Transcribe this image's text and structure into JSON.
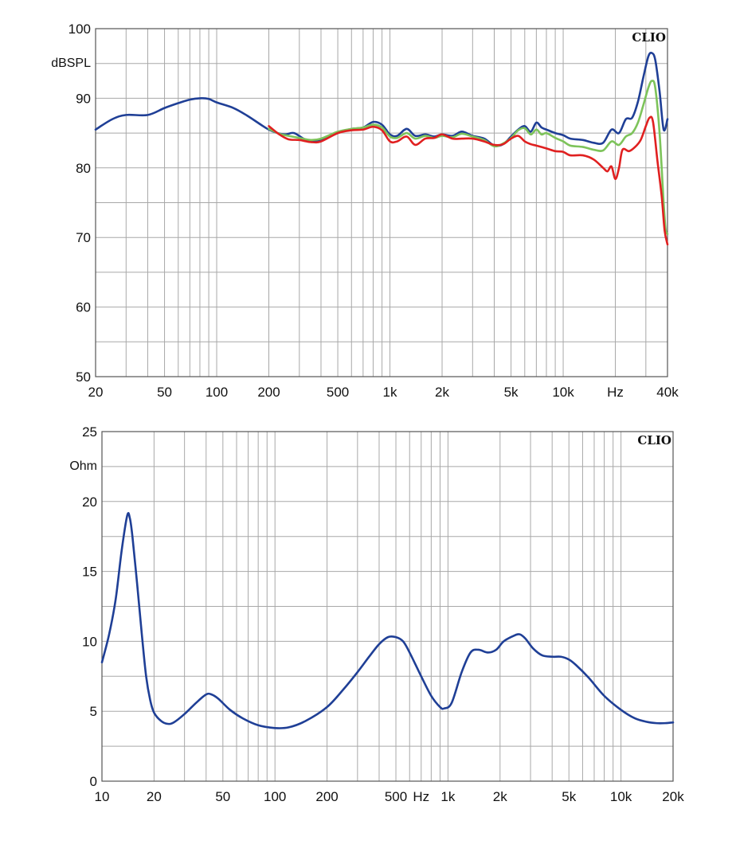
{
  "chart_data": [
    {
      "type": "line",
      "brand": "CLIO",
      "ylabel": "dBSPL",
      "xlabel": "Hz",
      "x_scale": "log",
      "xlim": [
        20,
        40000
      ],
      "ylim": [
        50,
        100
      ],
      "grid": true,
      "y_ticks": [
        {
          "value": 50,
          "label": "50"
        },
        {
          "value": 60,
          "label": "60"
        },
        {
          "value": 70,
          "label": "70"
        },
        {
          "value": 80,
          "label": "80"
        },
        {
          "value": 90,
          "label": "90"
        },
        {
          "value": 100,
          "label": "100"
        }
      ],
      "x_ticks": [
        {
          "value": 20,
          "label": "20"
        },
        {
          "value": 50,
          "label": "50"
        },
        {
          "value": 100,
          "label": "100"
        },
        {
          "value": 200,
          "label": "200"
        },
        {
          "value": 500,
          "label": "500"
        },
        {
          "value": 1000,
          "label": "1k"
        },
        {
          "value": 2000,
          "label": "2k"
        },
        {
          "value": 5000,
          "label": "5k"
        },
        {
          "value": 10000,
          "label": "10k"
        },
        {
          "value": 20000,
          "label": "Hz"
        },
        {
          "value": 40000,
          "label": "40k"
        }
      ],
      "series": [
        {
          "color": "#1f3f96",
          "points": [
            [
              20,
              85.5
            ],
            [
              25,
              87
            ],
            [
              30,
              87.6
            ],
            [
              40,
              87.6
            ],
            [
              50,
              88.6
            ],
            [
              60,
              89.3
            ],
            [
              70,
              89.8
            ],
            [
              80,
              90
            ],
            [
              90,
              89.9
            ],
            [
              100,
              89.4
            ],
            [
              125,
              88.6
            ],
            [
              150,
              87.5
            ],
            [
              180,
              86.2
            ],
            [
              200,
              85.5
            ],
            [
              225,
              85
            ],
            [
              250,
              84.8
            ],
            [
              280,
              85
            ],
            [
              330,
              84
            ],
            [
              400,
              84
            ],
            [
              500,
              85
            ],
            [
              600,
              85.6
            ],
            [
              700,
              85.8
            ],
            [
              800,
              86.6
            ],
            [
              900,
              86.2
            ],
            [
              1000,
              84.8
            ],
            [
              1100,
              84.6
            ],
            [
              1250,
              85.6
            ],
            [
              1400,
              84.6
            ],
            [
              1600,
              84.8
            ],
            [
              1800,
              84.5
            ],
            [
              2000,
              84.8
            ],
            [
              2300,
              84.6
            ],
            [
              2600,
              85.2
            ],
            [
              3000,
              84.6
            ],
            [
              3500,
              84.2
            ],
            [
              4000,
              83.2
            ],
            [
              4500,
              83.4
            ],
            [
              5000,
              84.5
            ],
            [
              5500,
              85.5
            ],
            [
              6000,
              86
            ],
            [
              6500,
              85.2
            ],
            [
              7000,
              86.5
            ],
            [
              7500,
              85.8
            ],
            [
              8000,
              85.5
            ],
            [
              9000,
              85
            ],
            [
              10000,
              84.7
            ],
            [
              11000,
              84.2
            ],
            [
              13000,
              84
            ],
            [
              15000,
              83.6
            ],
            [
              17000,
              83.6
            ],
            [
              19000,
              85.5
            ],
            [
              21000,
              85
            ],
            [
              23000,
              87
            ],
            [
              25000,
              87.2
            ],
            [
              27000,
              89.5
            ],
            [
              29000,
              93
            ],
            [
              31000,
              96
            ],
            [
              32500,
              96.5
            ],
            [
              34000,
              95.5
            ],
            [
              36000,
              91
            ],
            [
              38000,
              85.5
            ],
            [
              40000,
              87
            ]
          ]
        },
        {
          "color": "#7dc35a",
          "points": [
            [
              200,
              85.6
            ],
            [
              230,
              84.9
            ],
            [
              260,
              84.6
            ],
            [
              300,
              84.3
            ],
            [
              350,
              84
            ],
            [
              400,
              84.2
            ],
            [
              500,
              85.2
            ],
            [
              600,
              85.6
            ],
            [
              700,
              85.8
            ],
            [
              800,
              86.2
            ],
            [
              900,
              85.8
            ],
            [
              1000,
              84.5
            ],
            [
              1100,
              84.3
            ],
            [
              1250,
              85
            ],
            [
              1400,
              84.2
            ],
            [
              1600,
              84.6
            ],
            [
              1800,
              84.3
            ],
            [
              2000,
              84.6
            ],
            [
              2300,
              84.4
            ],
            [
              2600,
              84.9
            ],
            [
              3000,
              84.5
            ],
            [
              3500,
              84
            ],
            [
              4000,
              83.1
            ],
            [
              4500,
              83.5
            ],
            [
              5000,
              84.3
            ],
            [
              5500,
              85.4
            ],
            [
              6000,
              85.7
            ],
            [
              6500,
              84.8
            ],
            [
              7000,
              85.5
            ],
            [
              7500,
              84.8
            ],
            [
              8000,
              85
            ],
            [
              9000,
              84.3
            ],
            [
              10000,
              83.8
            ],
            [
              11000,
              83.2
            ],
            [
              13000,
              83
            ],
            [
              15000,
              82.6
            ],
            [
              17000,
              82.5
            ],
            [
              19000,
              83.8
            ],
            [
              21000,
              83.3
            ],
            [
              23000,
              84.5
            ],
            [
              25000,
              85
            ],
            [
              27000,
              86.5
            ],
            [
              29000,
              89
            ],
            [
              31000,
              91.5
            ],
            [
              32500,
              92.5
            ],
            [
              34000,
              91.5
            ],
            [
              36000,
              85
            ],
            [
              38000,
              75
            ],
            [
              39000,
              71.2
            ],
            [
              40000,
              70.5
            ]
          ]
        },
        {
          "color": "#e02020",
          "points": [
            [
              200,
              86
            ],
            [
              230,
              84.8
            ],
            [
              260,
              84.1
            ],
            [
              300,
              84
            ],
            [
              350,
              83.7
            ],
            [
              400,
              83.8
            ],
            [
              500,
              85
            ],
            [
              600,
              85.4
            ],
            [
              700,
              85.5
            ],
            [
              800,
              85.9
            ],
            [
              900,
              85.4
            ],
            [
              1000,
              83.8
            ],
            [
              1100,
              83.8
            ],
            [
              1250,
              84.5
            ],
            [
              1400,
              83.3
            ],
            [
              1600,
              84.2
            ],
            [
              1800,
              84.3
            ],
            [
              2000,
              84.8
            ],
            [
              2300,
              84.2
            ],
            [
              2600,
              84.2
            ],
            [
              3000,
              84.2
            ],
            [
              3500,
              83.8
            ],
            [
              4000,
              83.3
            ],
            [
              4500,
              83.4
            ],
            [
              5000,
              84.2
            ],
            [
              5500,
              84.6
            ],
            [
              6000,
              83.8
            ],
            [
              6500,
              83.4
            ],
            [
              7000,
              83.2
            ],
            [
              8000,
              82.8
            ],
            [
              9000,
              82.4
            ],
            [
              10000,
              82.3
            ],
            [
              11000,
              81.8
            ],
            [
              13000,
              81.8
            ],
            [
              15000,
              81.2
            ],
            [
              17000,
              80
            ],
            [
              18000,
              79.5
            ],
            [
              19000,
              80.2
            ],
            [
              20000,
              78.4
            ],
            [
              21000,
              80
            ],
            [
              22000,
              82.6
            ],
            [
              24000,
              82.4
            ],
            [
              26000,
              83
            ],
            [
              28000,
              84
            ],
            [
              30000,
              86
            ],
            [
              31500,
              87.2
            ],
            [
              33000,
              86.6
            ],
            [
              35000,
              81
            ],
            [
              37000,
              76
            ],
            [
              38500,
              71
            ],
            [
              40000,
              69
            ]
          ]
        }
      ]
    },
    {
      "type": "line",
      "brand": "CLIO",
      "ylabel": "Ohm",
      "xlabel": "Hz",
      "x_scale": "log",
      "xlim": [
        10,
        20000
      ],
      "ylim": [
        0,
        25
      ],
      "grid": true,
      "y_ticks": [
        {
          "value": 0,
          "label": "0"
        },
        {
          "value": 5,
          "label": "5"
        },
        {
          "value": 10,
          "label": "10"
        },
        {
          "value": 15,
          "label": "15"
        },
        {
          "value": 20,
          "label": "20"
        },
        {
          "value": 25,
          "label": "25"
        }
      ],
      "x_ticks": [
        {
          "value": 10,
          "label": "10"
        },
        {
          "value": 20,
          "label": "20"
        },
        {
          "value": 50,
          "label": "50"
        },
        {
          "value": 100,
          "label": "100"
        },
        {
          "value": 200,
          "label": "200"
        },
        {
          "value": 500,
          "label": "500"
        },
        {
          "value": 700,
          "label": "Hz"
        },
        {
          "value": 1000,
          "label": "1k"
        },
        {
          "value": 2000,
          "label": "2k"
        },
        {
          "value": 5000,
          "label": "5k"
        },
        {
          "value": 10000,
          "label": "10k"
        },
        {
          "value": 20000,
          "label": "20k"
        }
      ],
      "series": [
        {
          "color": "#1f3f96",
          "points": [
            [
              10,
              8.5
            ],
            [
              11,
              10.5
            ],
            [
              12,
              13
            ],
            [
              13,
              16.5
            ],
            [
              14,
              19
            ],
            [
              14.5,
              18.8
            ],
            [
              15,
              17.5
            ],
            [
              16,
              14
            ],
            [
              17,
              10.5
            ],
            [
              18,
              7.5
            ],
            [
              19,
              5.8
            ],
            [
              20,
              4.9
            ],
            [
              22,
              4.3
            ],
            [
              24,
              4.1
            ],
            [
              26,
              4.2
            ],
            [
              30,
              4.8
            ],
            [
              35,
              5.6
            ],
            [
              40,
              6.2
            ],
            [
              43,
              6.2
            ],
            [
              47,
              5.9
            ],
            [
              55,
              5.1
            ],
            [
              65,
              4.5
            ],
            [
              80,
              4
            ],
            [
              100,
              3.8
            ],
            [
              120,
              3.85
            ],
            [
              150,
              4.3
            ],
            [
              200,
              5.3
            ],
            [
              250,
              6.6
            ],
            [
              300,
              7.8
            ],
            [
              350,
              8.9
            ],
            [
              400,
              9.8
            ],
            [
              450,
              10.3
            ],
            [
              500,
              10.3
            ],
            [
              550,
              10
            ],
            [
              600,
              9.2
            ],
            [
              700,
              7.5
            ],
            [
              800,
              6.1
            ],
            [
              900,
              5.3
            ],
            [
              950,
              5.2
            ],
            [
              1050,
              5.6
            ],
            [
              1200,
              7.8
            ],
            [
              1350,
              9.2
            ],
            [
              1500,
              9.4
            ],
            [
              1700,
              9.2
            ],
            [
              1900,
              9.4
            ],
            [
              2100,
              10
            ],
            [
              2400,
              10.4
            ],
            [
              2600,
              10.5
            ],
            [
              2800,
              10.2
            ],
            [
              3100,
              9.5
            ],
            [
              3500,
              9
            ],
            [
              4000,
              8.9
            ],
            [
              4500,
              8.9
            ],
            [
              5000,
              8.7
            ],
            [
              5500,
              8.3
            ],
            [
              6500,
              7.4
            ],
            [
              8000,
              6.1
            ],
            [
              10000,
              5.1
            ],
            [
              12000,
              4.5
            ],
            [
              14000,
              4.25
            ],
            [
              16000,
              4.15
            ],
            [
              18000,
              4.15
            ],
            [
              20000,
              4.2
            ]
          ]
        }
      ]
    }
  ]
}
